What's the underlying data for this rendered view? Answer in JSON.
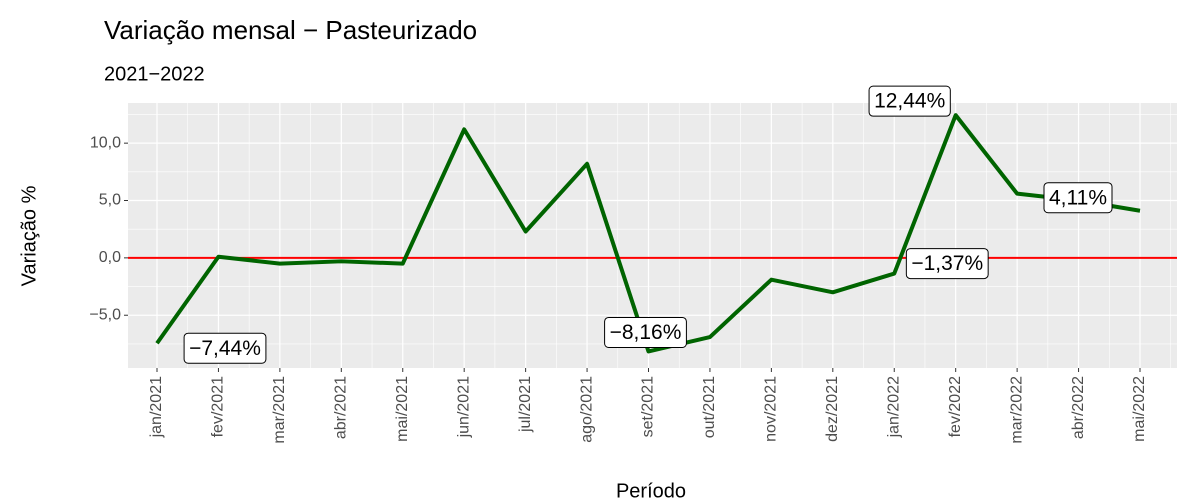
{
  "chart_data": {
    "type": "line",
    "title": "Variação mensal − Pasteurizado",
    "subtitle": "2021−2022",
    "x_label": "Período",
    "y_label": "Variação %",
    "categories": [
      "jan/2021",
      "fev/2021",
      "mar/2021",
      "abr/2021",
      "mai/2021",
      "jun/2021",
      "jul/2021",
      "ago/2021",
      "set/2021",
      "out/2021",
      "nov/2021",
      "dez/2021",
      "jan/2022",
      "fev/2022",
      "mar/2022",
      "abr/2022",
      "mai/2022"
    ],
    "series": [
      {
        "color": "#006400",
        "values": [
          -7.44,
          0.1,
          -0.5,
          -0.3,
          -0.5,
          11.2,
          2.3,
          8.2,
          -8.16,
          -6.9,
          -1.9,
          -3.0,
          -1.37,
          12.44,
          5.6,
          5.0,
          4.11
        ],
        "value_labels": [
          "−7,44%",
          null,
          null,
          null,
          null,
          null,
          null,
          null,
          "−8,16%",
          null,
          null,
          null,
          "−1,37%",
          "12,44%",
          null,
          null,
          "4,11%"
        ]
      }
    ],
    "ylim": [
      -9.6,
      13.5
    ],
    "yticks": [
      {
        "value": -5,
        "label": "−5,0"
      },
      {
        "value": 0,
        "label": "0,0"
      },
      {
        "value": 5,
        "label": "5,0"
      },
      {
        "value": 10,
        "label": "10,0"
      }
    ],
    "reference_line": {
      "value": 0,
      "color": "#ff0000"
    },
    "grid": true
  }
}
